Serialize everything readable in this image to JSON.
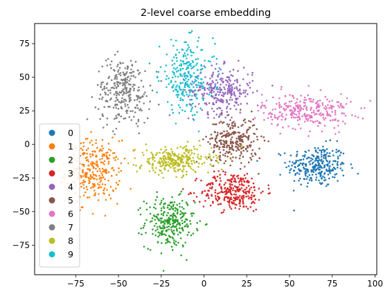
{
  "chart_data": {
    "type": "scatter",
    "title": "2-level coarse embedding",
    "xlabel": "",
    "ylabel": "",
    "xlim": [
      -99,
      101
    ],
    "ylim": [
      -97,
      90
    ],
    "xticks": [
      -75,
      -50,
      -25,
      0,
      25,
      50,
      75,
      100
    ],
    "yticks": [
      -75,
      -50,
      -25,
      0,
      25,
      50,
      75
    ],
    "xtick_labels": [
      "−75",
      "−50",
      "−25",
      "0",
      "25",
      "50",
      "75",
      "100"
    ],
    "ytick_labels": [
      "−75",
      "−50",
      "−25",
      "0",
      "25",
      "50",
      "75"
    ],
    "grid": false,
    "legend_position": "lower-left",
    "series": [
      {
        "name": "0",
        "color": "#1f77b4",
        "center": [
          66,
          -16
        ],
        "spread": [
          12,
          11
        ],
        "count": 280
      },
      {
        "name": "1",
        "color": "#ff7f0e",
        "center": [
          -65,
          -20
        ],
        "spread": [
          11,
          16
        ],
        "count": 300
      },
      {
        "name": "2",
        "color": "#2ca02c",
        "center": [
          -20,
          -58
        ],
        "spread": [
          10,
          13
        ],
        "count": 280
      },
      {
        "name": "3",
        "color": "#d62728",
        "center": [
          17,
          -35
        ],
        "spread": [
          13,
          10
        ],
        "count": 290
      },
      {
        "name": "4",
        "color": "#9467bd",
        "center": [
          10,
          40
        ],
        "spread": [
          13,
          12
        ],
        "count": 280
      },
      {
        "name": "5",
        "color": "#8c564b",
        "center": [
          17,
          3
        ],
        "spread": [
          10,
          12
        ],
        "count": 270
      },
      {
        "name": "6",
        "color": "#e377c2",
        "center": [
          60,
          25
        ],
        "spread": [
          18,
          9
        ],
        "count": 290
      },
      {
        "name": "7",
        "color": "#7f7f7f",
        "center": [
          -47,
          40
        ],
        "spread": [
          11,
          17
        ],
        "count": 290
      },
      {
        "name": "8",
        "color": "#bcbd22",
        "center": [
          -17,
          -12
        ],
        "spread": [
          15,
          7
        ],
        "count": 290
      },
      {
        "name": "9",
        "color": "#17becf",
        "center": [
          -10,
          50
        ],
        "spread": [
          11,
          18
        ],
        "count": 260
      }
    ]
  }
}
